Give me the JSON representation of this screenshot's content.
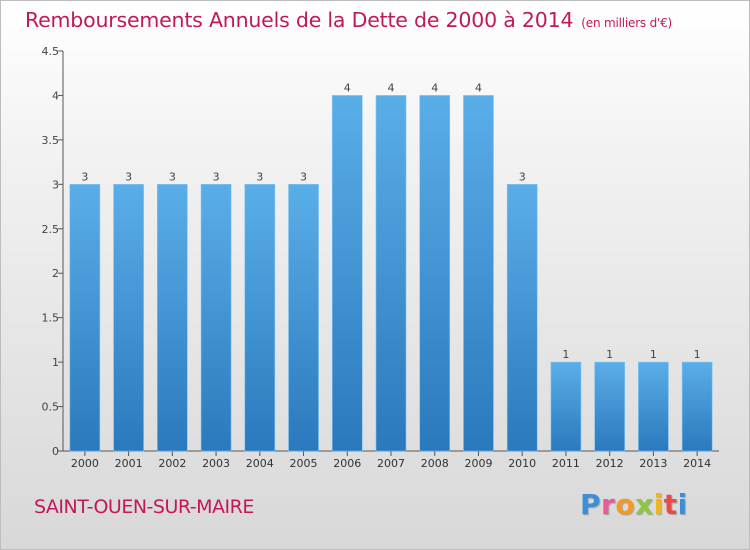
{
  "title": "Remboursements Annuels de la Dette de 2000 à 2014",
  "unit_note": "(en milliers d'€)",
  "city": "SAINT-OUEN-SUR-MAIRE",
  "logo": {
    "letters": [
      "P",
      "r",
      "o",
      "x",
      "i",
      "t",
      "i"
    ]
  },
  "colors": {
    "title": "#c2185b",
    "bar_top": "#5aaee8",
    "bar_bottom": "#2a79bd",
    "axis": "#555555"
  },
  "chart_data": {
    "type": "bar",
    "title": "Remboursements Annuels de la Dette de 2000 à 2014",
    "xlabel": "",
    "ylabel": "",
    "categories": [
      "2000",
      "2001",
      "2002",
      "2003",
      "2004",
      "2005",
      "2006",
      "2007",
      "2008",
      "2009",
      "2010",
      "2011",
      "2012",
      "2013",
      "2014"
    ],
    "values": [
      3,
      3,
      3,
      3,
      3,
      3,
      4,
      4,
      4,
      4,
      3,
      1,
      1,
      1,
      1
    ],
    "ylim": [
      0,
      4.5
    ],
    "yticks": [
      0,
      0.5,
      1,
      1.5,
      2,
      2.5,
      3,
      3.5,
      4,
      4.5
    ],
    "ytick_labels": [
      "0",
      "0.5",
      "1",
      "1.5",
      "2",
      "2.5",
      "3",
      "3.5",
      "4",
      "4.5"
    ],
    "data_labels": true,
    "grid": false,
    "legend": "none"
  }
}
